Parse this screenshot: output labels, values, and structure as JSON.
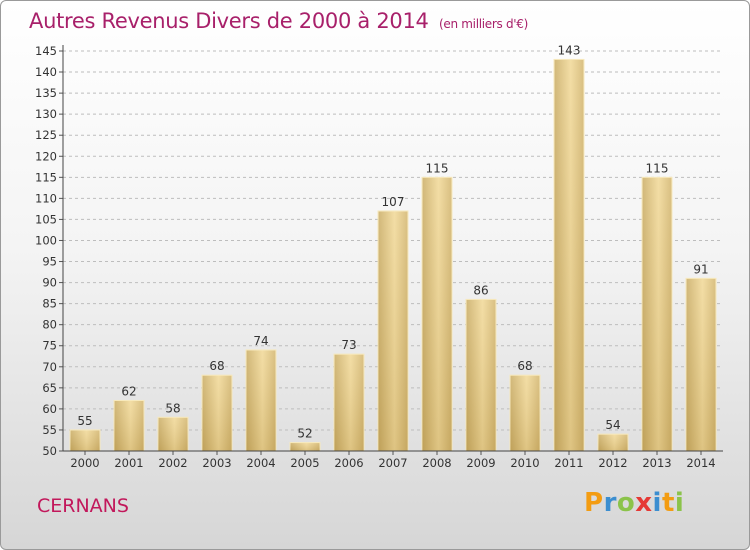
{
  "title": "Autres Revenus Divers de 2000 à 2014",
  "subtitle": "(en milliers d'€)",
  "commune": "CERNANS",
  "logo": {
    "letters": [
      "P",
      "r",
      "o",
      "x",
      "i",
      "t",
      "i"
    ],
    "colors": [
      "#f39c12",
      "#3b8ed0",
      "#8bc34a",
      "#e53935",
      "#3b8ed0",
      "#f39c12",
      "#8bc34a"
    ]
  },
  "chart_data": {
    "type": "bar",
    "categories": [
      "2000",
      "2001",
      "2002",
      "2003",
      "2004",
      "2005",
      "2006",
      "2007",
      "2008",
      "2009",
      "2010",
      "2011",
      "2012",
      "2013",
      "2014"
    ],
    "values": [
      55,
      62,
      58,
      68,
      74,
      52,
      73,
      107,
      115,
      86,
      68,
      143,
      54,
      115,
      91
    ],
    "ylim": [
      50,
      145
    ],
    "yticks": [
      50,
      55,
      60,
      65,
      70,
      75,
      80,
      85,
      90,
      95,
      100,
      105,
      110,
      115,
      120,
      125,
      130,
      135,
      140,
      145
    ],
    "grid": true,
    "bar_color": "#e8cc85"
  }
}
